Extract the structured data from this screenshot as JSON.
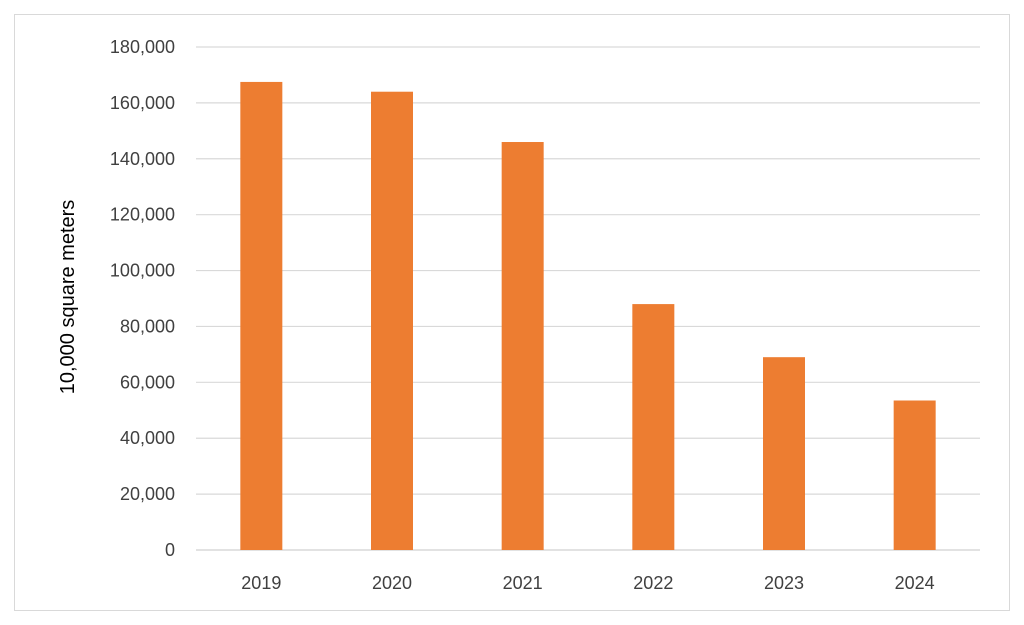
{
  "chart_data": {
    "type": "bar",
    "categories": [
      "2019",
      "2020",
      "2021",
      "2022",
      "2023",
      "2024"
    ],
    "values": [
      167500,
      164000,
      146000,
      88000,
      69000,
      53500
    ],
    "title": "",
    "xlabel": "",
    "ylabel": "10,000 square meters",
    "ylim": [
      0,
      180000
    ],
    "yticks": [
      "0",
      "20,000",
      "40,000",
      "60,000",
      "80,000",
      "100,000",
      "120,000",
      "140,000",
      "160,000",
      "180,000"
    ],
    "grid": true,
    "legend": "none",
    "bar_color": "#ED7D31",
    "gridline_color": "#D9D9D9"
  }
}
